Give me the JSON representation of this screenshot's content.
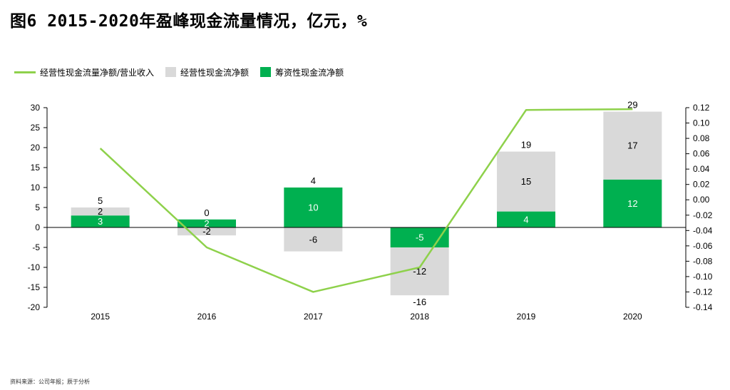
{
  "title": "图6   2015-2020年盈峰现金流量情况，亿元，%",
  "source": "资料来源：公司年报；辰于分析",
  "colors": {
    "operating": "#d9d9d9",
    "financing": "#00b050",
    "ratio_line": "#8ed14b"
  },
  "chart_data": {
    "type": "bar",
    "categories": [
      "2015",
      "2016",
      "2017",
      "2018",
      "2019",
      "2020"
    ],
    "series": [
      {
        "name": "经营性现金流净额",
        "kind": "stacked-bar",
        "values": [
          2,
          -2,
          -6,
          -12,
          15,
          17
        ],
        "labels": [
          "2",
          "-2",
          "-6",
          "-12",
          "15",
          "17"
        ]
      },
      {
        "name": "筹资性现金流净额",
        "kind": "stacked-bar",
        "values": [
          3,
          2,
          10,
          -5,
          4,
          12
        ],
        "labels": [
          "3",
          "2",
          "10",
          "-5",
          "4",
          "12"
        ]
      },
      {
        "name": "经营性现金流量净额/营业收入",
        "kind": "line",
        "axis": "right",
        "values": [
          0.067,
          -0.062,
          -0.12,
          -0.088,
          0.117,
          0.118
        ]
      }
    ],
    "totals": [
      "5",
      "0",
      "4",
      "-16",
      "19",
      "29"
    ],
    "total_positions": [
      "above",
      "above",
      "above",
      "below",
      "above",
      "above"
    ],
    "legend_order": [
      "经营性现金流量净额/营业收入",
      "经营性现金流净额",
      "筹资性现金流净额"
    ],
    "y_left": {
      "min": -20,
      "max": 30,
      "ticks": [
        "30",
        "25",
        "20",
        "15",
        "10",
        "5",
        "0",
        "-5",
        "-10",
        "-15",
        "-20"
      ]
    },
    "y_right": {
      "min": -0.14,
      "max": 0.12,
      "ticks": [
        "0.12",
        "0.10",
        "0.08",
        "0.06",
        "0.04",
        "0.02",
        "0.00",
        "-0.02",
        "-0.04",
        "-0.06",
        "-0.08",
        "-0.10",
        "-0.12",
        "-0.14"
      ]
    },
    "legend_position": "top-left",
    "grid": false
  }
}
